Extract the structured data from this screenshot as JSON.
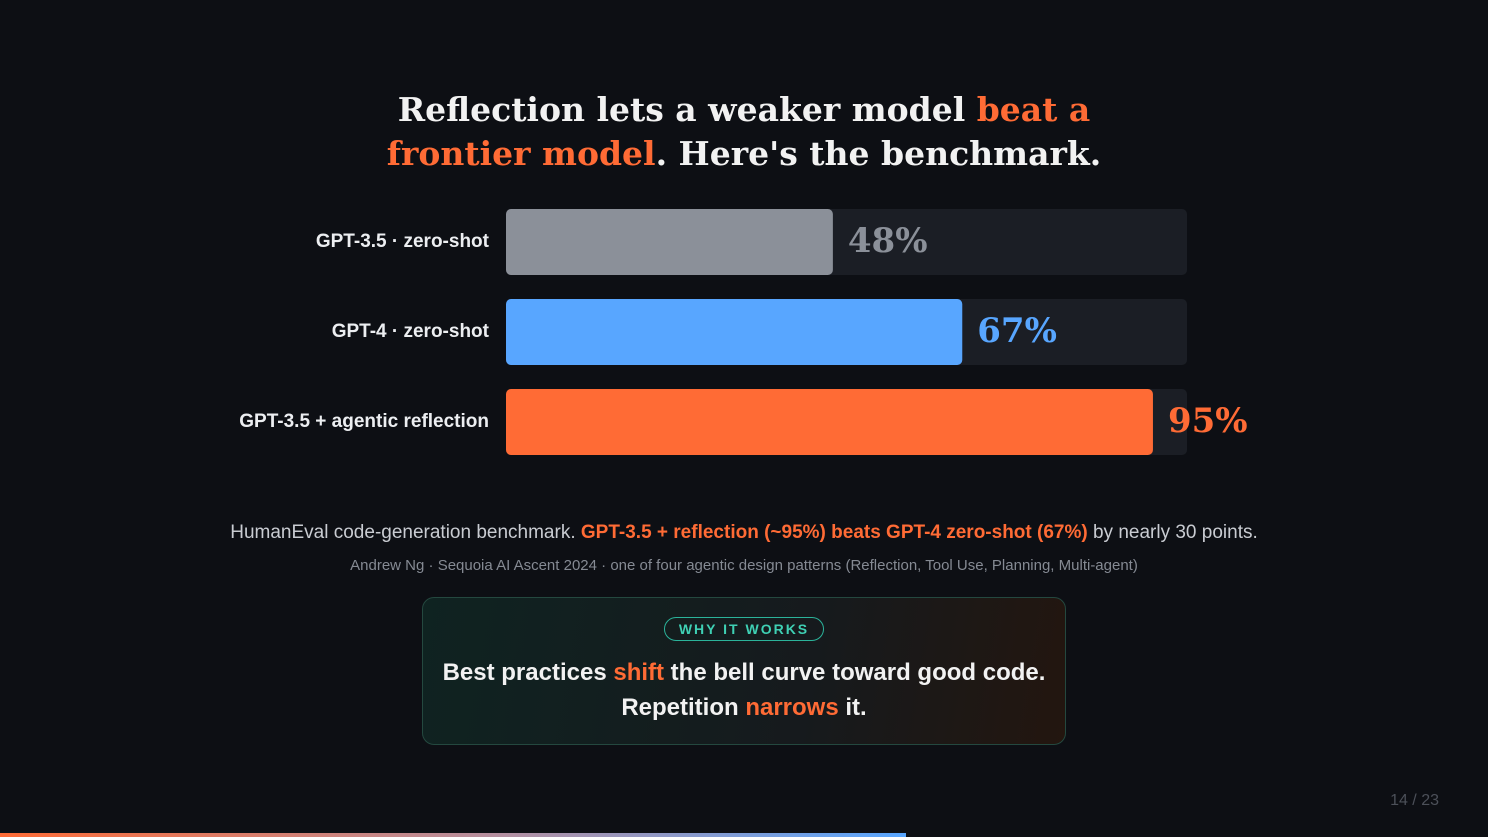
{
  "slide": {
    "title": {
      "parts": [
        "Reflection lets a weaker model ",
        "beat a",
        "frontier model",
        ". Here's the benchmark."
      ]
    },
    "caption": {
      "parts": [
        "HumanEval code-generation benchmark. ",
        "GPT-3.5 + reflection (~95%) beats GPT-4 zero-shot (67%)",
        " by nearly 30 points."
      ]
    },
    "source": "Andrew Ng · Sequoia AI Ascent 2024 · one of four agentic design patterns (Reflection, Tool Use, Planning, Multi-agent)",
    "callout": {
      "badge": "WHY IT WORKS",
      "lines": [
        [
          "Best practices ",
          "shift",
          " the bell curve toward good code."
        ],
        [
          "Repetition ",
          "narrows",
          " it."
        ]
      ]
    },
    "page": "14 / 23"
  },
  "chart_data": {
    "type": "bar",
    "orientation": "horizontal",
    "categories": [
      "GPT-3.5 · zero-shot",
      "GPT-4 · zero-shot",
      "GPT-3.5 + agentic reflection"
    ],
    "values": [
      48,
      67,
      95
    ],
    "value_labels": [
      "48%",
      "67%",
      "95%"
    ],
    "colors": [
      "#8b9099",
      "#58a6ff",
      "#ff6b35"
    ],
    "xlim": [
      0,
      100
    ]
  }
}
